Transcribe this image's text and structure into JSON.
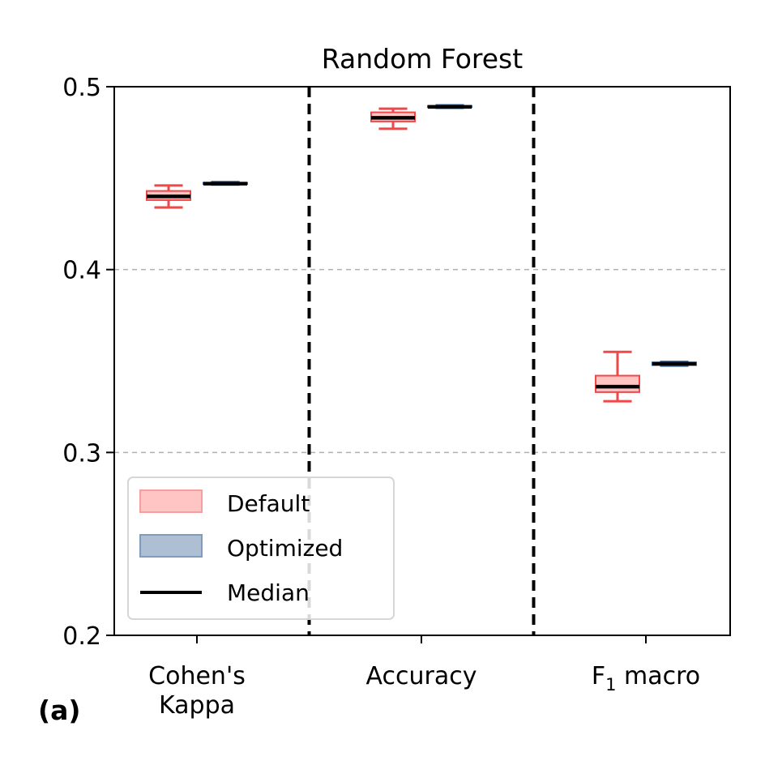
{
  "panel_label": "(a)",
  "chart_data": {
    "type": "box",
    "title": "Random Forest",
    "xlabel": "",
    "ylabel": "",
    "ylim": [
      0.2,
      0.5
    ],
    "yticks": [
      0.2,
      0.3,
      0.4,
      0.5
    ],
    "ytick_labels": [
      "0.2",
      "0.3",
      "0.4",
      "0.5"
    ],
    "grid": "horizontal dashed",
    "categories": [
      {
        "lines": [
          "Cohen's",
          "Kappa"
        ]
      },
      {
        "lines": [
          "Accuracy"
        ]
      },
      {
        "lines": [
          "F",
          "1",
          " macro"
        ],
        "subscript_index": 1
      }
    ],
    "legend": {
      "placement": "lower-left",
      "entries": [
        "Default",
        "Optimized",
        "Median"
      ]
    },
    "colors": {
      "default_edge": "#f04848",
      "default_fill": "#ffc4c4",
      "optimized_edge": "#2b5d9a",
      "optimized_fill": "#aebfd3",
      "median": "#000000",
      "separator": "#000000",
      "grid": "#b0b0b0"
    },
    "series": [
      {
        "name": "Default",
        "boxes": [
          {
            "whislo": 0.434,
            "q1": 0.438,
            "med": 0.44,
            "q3": 0.443,
            "whishi": 0.446
          },
          {
            "whislo": 0.477,
            "q1": 0.481,
            "med": 0.483,
            "q3": 0.486,
            "whishi": 0.488
          },
          {
            "whislo": 0.328,
            "q1": 0.333,
            "med": 0.336,
            "q3": 0.342,
            "whishi": 0.355
          }
        ]
      },
      {
        "name": "Optimized",
        "boxes": [
          {
            "whislo": 0.4465,
            "q1": 0.4468,
            "med": 0.447,
            "q3": 0.4475,
            "whishi": 0.4478
          },
          {
            "whislo": 0.4885,
            "q1": 0.4888,
            "med": 0.489,
            "q3": 0.4895,
            "whishi": 0.4898
          },
          {
            "whislo": 0.3475,
            "q1": 0.3478,
            "med": 0.3485,
            "q3": 0.3492,
            "whishi": 0.3495
          }
        ]
      }
    ]
  }
}
